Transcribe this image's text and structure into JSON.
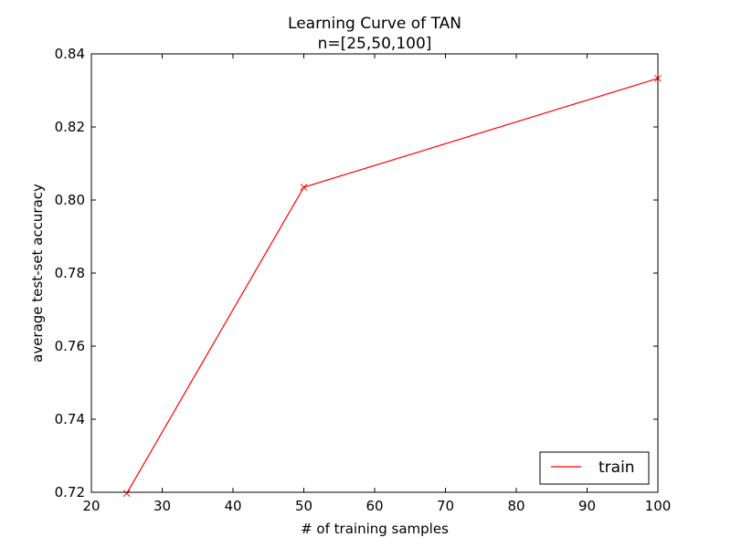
{
  "chart_data": {
    "type": "line",
    "title": "Learning Curve of TAN",
    "subtitle": "n=[25,50,100]",
    "xlabel": "# of training samples",
    "ylabel": "average test-set accuracy",
    "xlim": [
      20,
      100
    ],
    "ylim": [
      0.72,
      0.84
    ],
    "x_ticks": [
      "20",
      "30",
      "40",
      "50",
      "60",
      "70",
      "80",
      "90",
      "100"
    ],
    "y_ticks": [
      "0.72",
      "0.74",
      "0.76",
      "0.78",
      "0.80",
      "0.82",
      "0.84"
    ],
    "grid": false,
    "legend_position": "bottom-right",
    "series": [
      {
        "name": "train",
        "color": "#ff0000",
        "marker": "x",
        "x": [
          25,
          50,
          100
        ],
        "y": [
          0.7197,
          0.8035,
          0.8333
        ]
      }
    ]
  }
}
